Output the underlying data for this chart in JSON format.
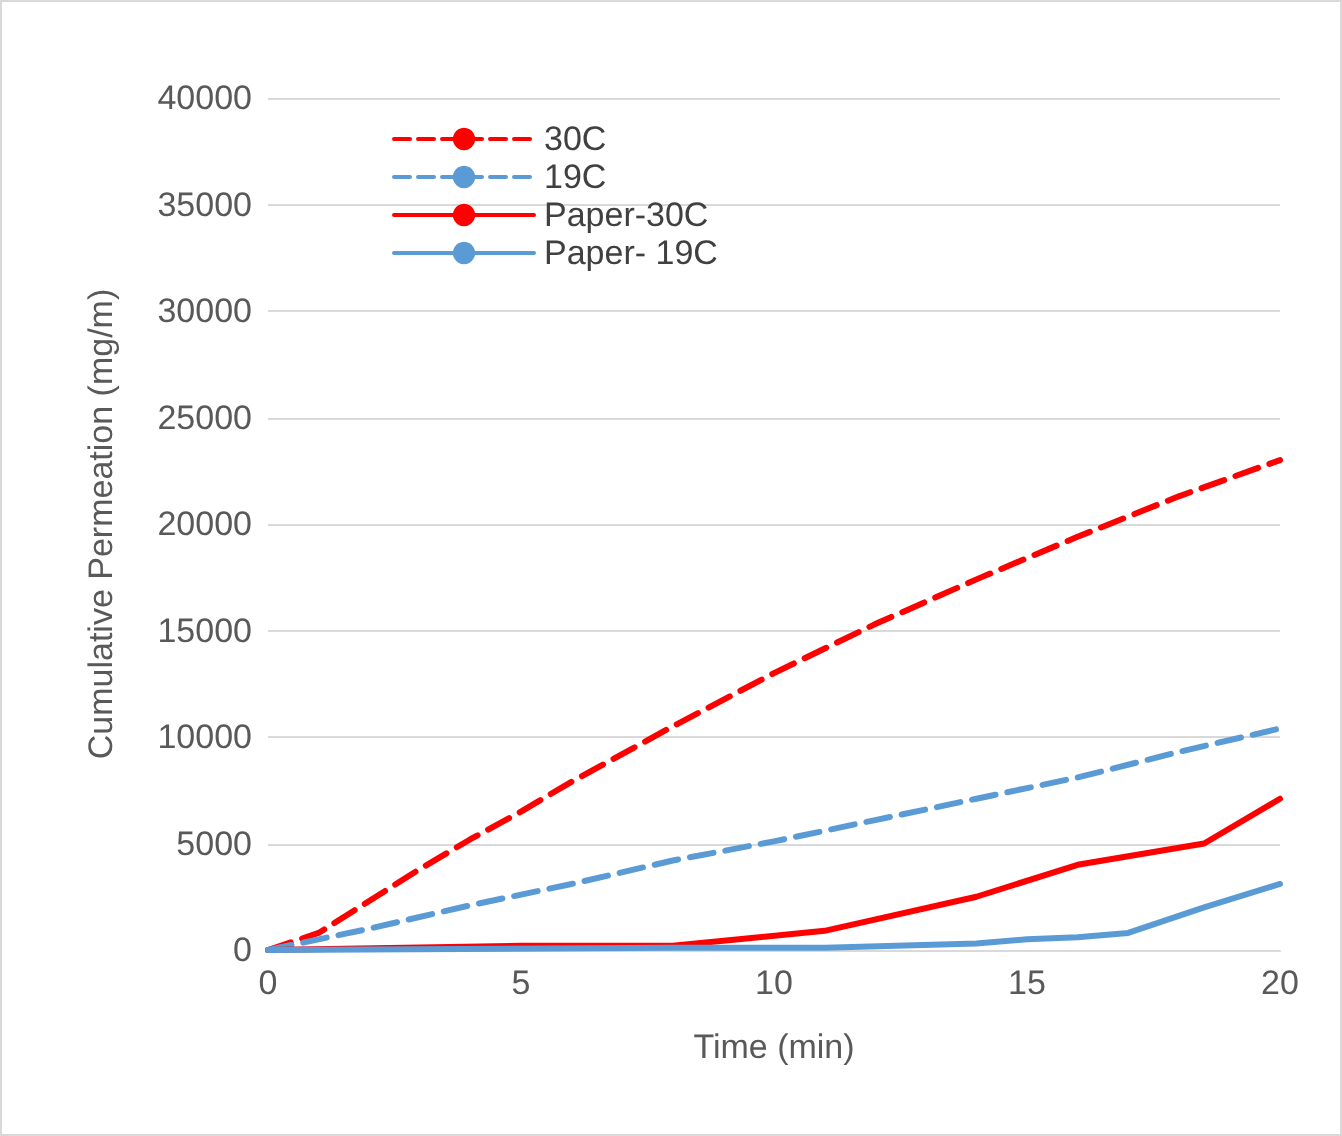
{
  "chart_data": {
    "type": "line",
    "xlabel": "Time (min)",
    "ylabel": "Cumulative Permeation (mg/m)",
    "xlim": [
      0,
      20
    ],
    "xticks": [
      0,
      5,
      10,
      15,
      20
    ],
    "ylim": [
      0,
      40000
    ],
    "yticks": [
      0,
      5000,
      10000,
      15000,
      20000,
      25000,
      30000,
      35000,
      40000
    ],
    "grid": "y",
    "legend": "top left",
    "marker": "none",
    "series": [
      {
        "name": "30C",
        "color": "#ff0000",
        "line_style": "dashed",
        "x": [
          0,
          1,
          2,
          3,
          4,
          5,
          6,
          7,
          8,
          10,
          12,
          14,
          16,
          18,
          20
        ],
        "values": [
          0,
          800,
          2300,
          3800,
          5200,
          6500,
          7900,
          9200,
          10500,
          13000,
          15300,
          17400,
          19400,
          21300,
          23000
        ]
      },
      {
        "name": "19C",
        "color": "#5b9bd5",
        "line_style": "dashed",
        "x": [
          0,
          2,
          4,
          6,
          8,
          10,
          12,
          14,
          16,
          18,
          20
        ],
        "values": [
          0,
          1000,
          2100,
          3100,
          4200,
          5100,
          6100,
          7100,
          8100,
          9300,
          10400
        ]
      },
      {
        "name": "Paper-30C",
        "color": "#ff0000",
        "line_style": "solid",
        "x": [
          0,
          5,
          8,
          11,
          14,
          16,
          18.5,
          20
        ],
        "values": [
          0,
          200,
          200,
          900,
          2500,
          4000,
          5000,
          7100
        ]
      },
      {
        "name": "Paper- 19C",
        "color": "#5b9bd5",
        "line_style": "solid",
        "x": [
          0,
          8,
          11,
          14,
          15,
          16,
          17,
          18.5,
          20
        ],
        "values": [
          0,
          100,
          100,
          300,
          500,
          600,
          800,
          2000,
          3100
        ]
      }
    ]
  }
}
